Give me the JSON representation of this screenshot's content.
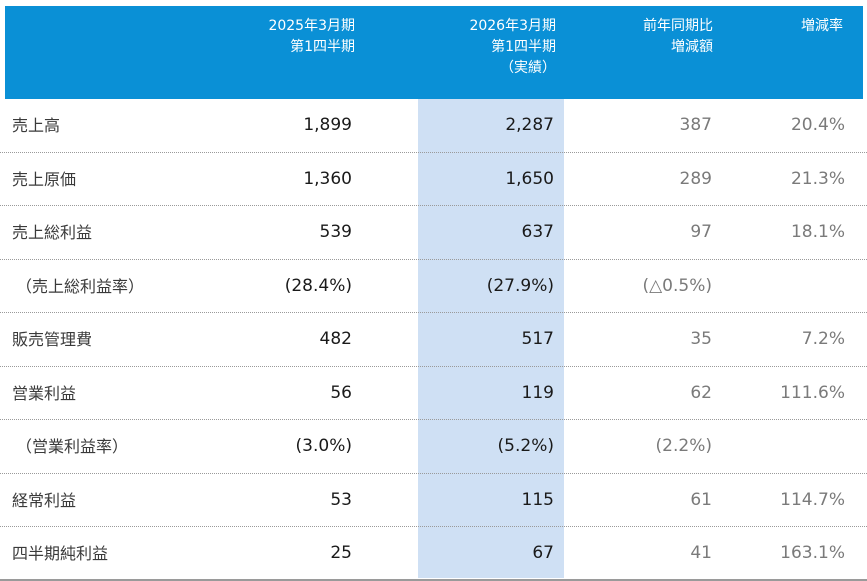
{
  "header": {
    "col1": [
      "2025年3月期",
      "第1四半期"
    ],
    "col2": [
      "2026年3月期",
      "第1四半期",
      "（実績）"
    ],
    "col3": [
      "前年同期比",
      "増減額"
    ],
    "col4": [
      "増減率"
    ]
  },
  "rows": [
    {
      "label": "売上高",
      "prev": "1,899",
      "curr": "2,287",
      "diff": "387",
      "rate": "20.4%",
      "indent": false
    },
    {
      "label": "売上原価",
      "prev": "1,360",
      "curr": "1,650",
      "diff": "289",
      "rate": "21.3%",
      "indent": false
    },
    {
      "label": "売上総利益",
      "prev": "539",
      "curr": "637",
      "diff": "97",
      "rate": "18.1%",
      "indent": false
    },
    {
      "label": "（売上総利益率）",
      "prev": "(28.4%)",
      "curr": "(27.9%)",
      "diff": "(△0.5%)",
      "rate": "",
      "indent": true
    },
    {
      "label": "販売管理費",
      "prev": "482",
      "curr": "517",
      "diff": "35",
      "rate": "7.2%",
      "indent": false
    },
    {
      "label": "営業利益",
      "prev": "56",
      "curr": "119",
      "diff": "62",
      "rate": "111.6%",
      "indent": false
    },
    {
      "label": "（営業利益率）",
      "prev": "(3.0%)",
      "curr": "(5.2%)",
      "diff": "(2.2%)",
      "rate": "",
      "indent": true
    },
    {
      "label": "経常利益",
      "prev": "53",
      "curr": "115",
      "diff": "61",
      "rate": "114.7%",
      "indent": false
    },
    {
      "label": "四半期純利益",
      "prev": "25",
      "curr": "67",
      "diff": "41",
      "rate": "163.1%",
      "indent": false
    }
  ],
  "colors": {
    "header_bg": "#0a90d6",
    "highlight_bg": "#cfe0f4"
  }
}
